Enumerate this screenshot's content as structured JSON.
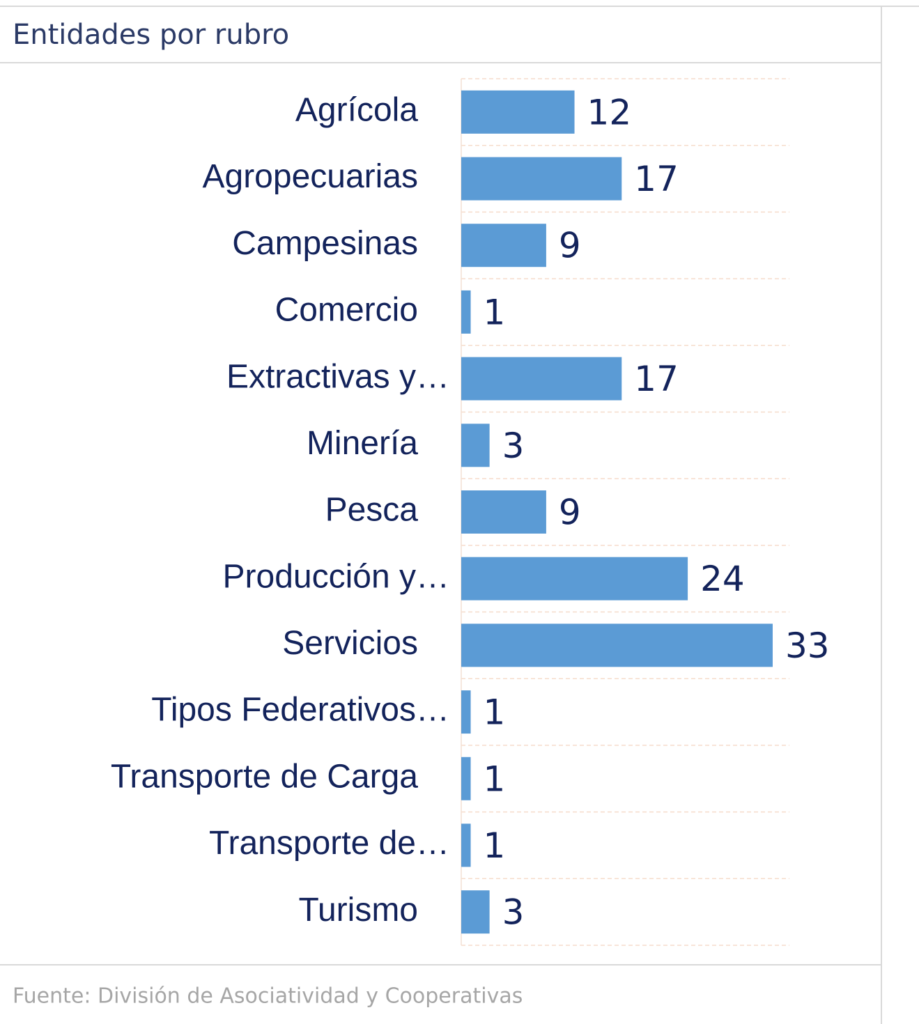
{
  "header": {
    "title": "Entidades por rubro"
  },
  "chart_data": {
    "type": "bar",
    "orientation": "horizontal",
    "categories": [
      "Agrícola",
      "Agropecuarias",
      "Campesinas",
      "Comercio",
      "Extractivas y…",
      "Minería",
      "Pesca",
      "Producción y…",
      "Servicios",
      "Tipos Federativos…",
      "Transporte de Carga",
      "Transporte de…",
      "Turismo"
    ],
    "values": [
      12,
      17,
      9,
      1,
      17,
      3,
      9,
      24,
      33,
      1,
      1,
      1,
      3
    ],
    "color": "#5b9bd5"
  },
  "footer": {
    "source": "Fuente: División de Asociatividad y Cooperativas"
  }
}
